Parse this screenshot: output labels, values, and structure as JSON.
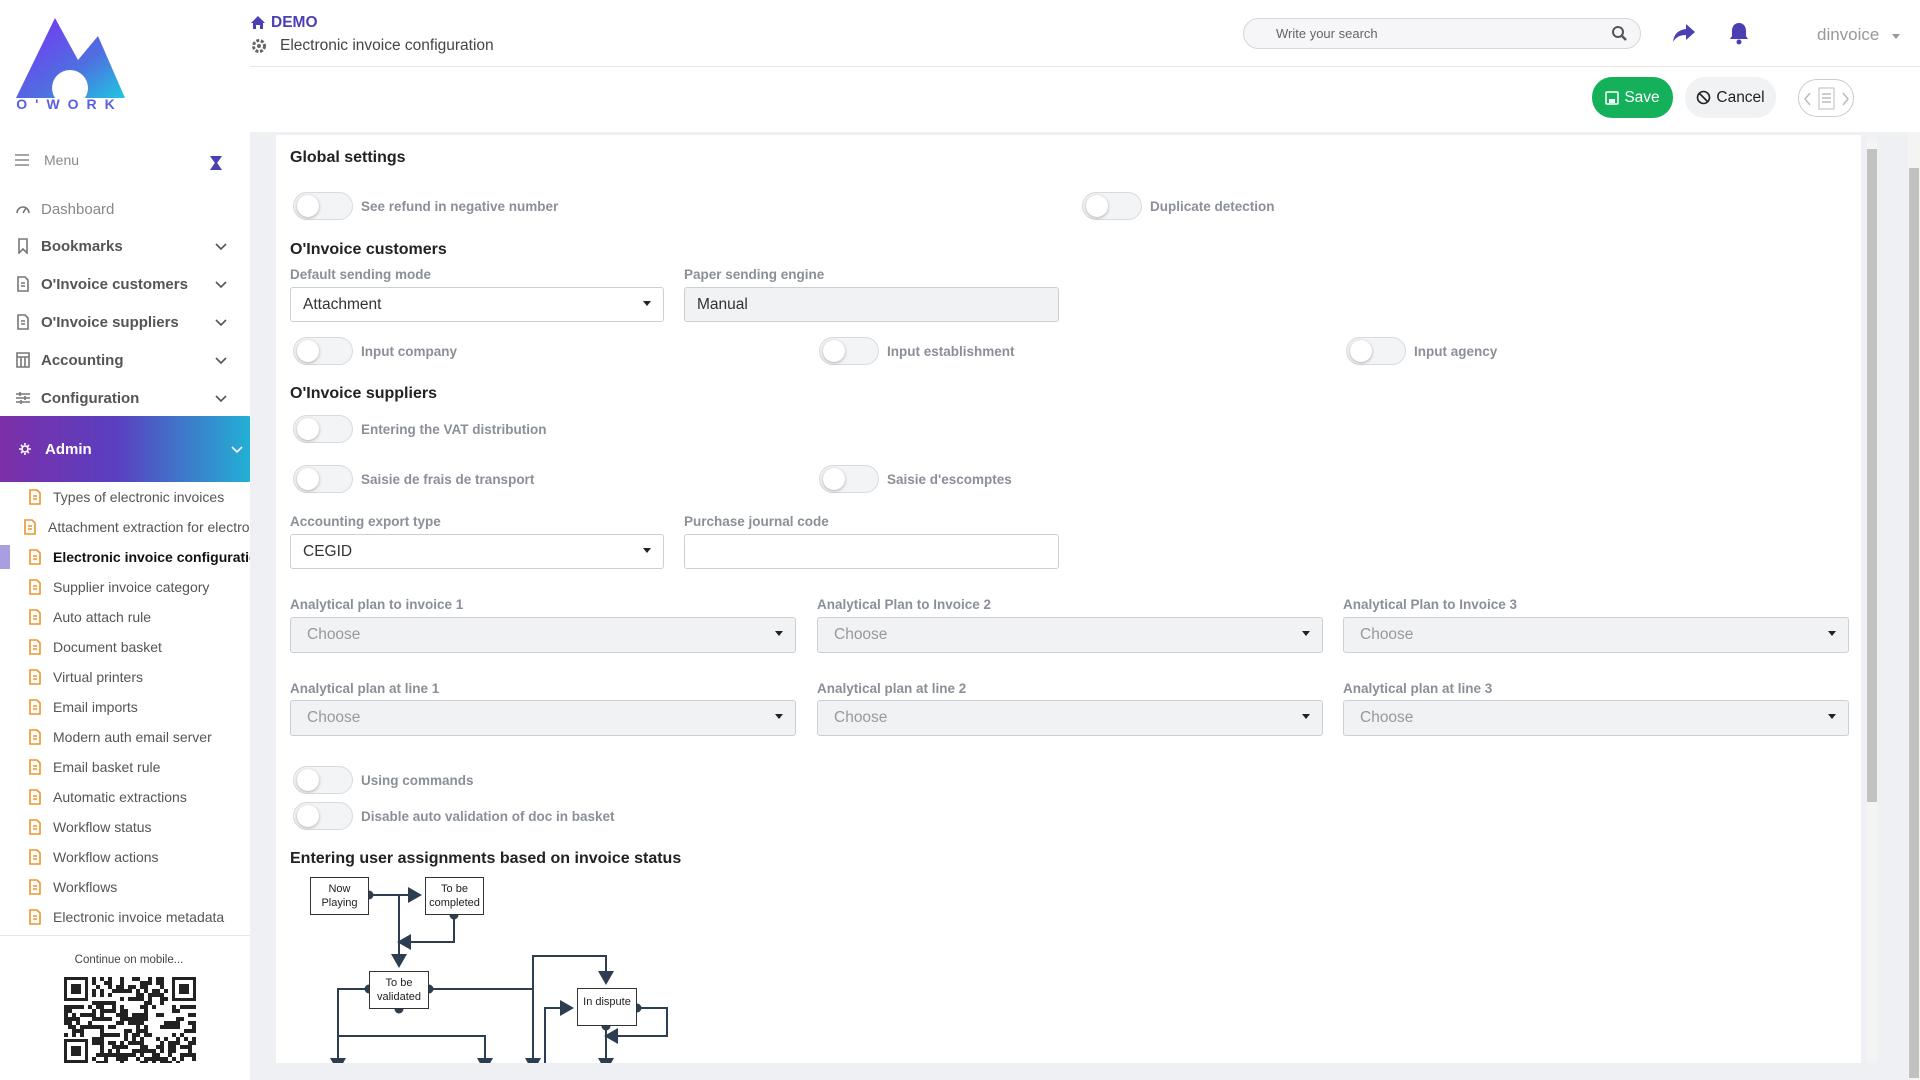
{
  "header": {
    "logo": "O'WORK",
    "breadcrumb": "DEMO",
    "page_title": "Electronic invoice configuration",
    "search_placeholder": "Write your search",
    "user": "dinvoice"
  },
  "toolbar": {
    "save": "Save",
    "cancel": "Cancel"
  },
  "sidebar": {
    "menu": "Menu",
    "items": [
      "Dashboard",
      "Bookmarks",
      "O'Invoice customers",
      "O'Invoice suppliers",
      "Accounting",
      "Configuration"
    ],
    "admin": "Admin",
    "admin_items": [
      "Types of electronic invoices",
      "Attachment extraction for electronic invoices",
      "Electronic invoice configuration",
      "Supplier invoice category",
      "Auto attach rule",
      "Document basket",
      "Virtual printers",
      "Email imports",
      "Modern auth email server",
      "Email basket rule",
      "Automatic extractions",
      "Workflow status",
      "Workflow actions",
      "Workflows",
      "Electronic invoice metadata"
    ],
    "mobile_caption": "Continue on mobile..."
  },
  "form": {
    "global_title": "Global settings",
    "toggles_global": [
      "See refund in negative number",
      "Duplicate detection"
    ],
    "customers_title": "O'Invoice customers",
    "fields_customers": [
      {
        "label": "Default sending mode",
        "value": "Attachment"
      },
      {
        "label": "Paper sending engine",
        "value": "Manual"
      }
    ],
    "toggles_customers": [
      "Input company",
      "Input establishment",
      "Input agency"
    ],
    "suppliers_title": "O'Invoice suppliers",
    "toggles_suppliers": [
      "Entering the VAT distribution",
      "Saisie de frais de transport",
      "Saisie d'escomptes"
    ],
    "fields_suppliers": [
      {
        "label": "Accounting export type",
        "value": "CEGID"
      },
      {
        "label": "Purchase journal code"
      }
    ],
    "analytical": [
      {
        "label": "Analytical plan to invoice 1",
        "placeholder": "Choose"
      },
      {
        "label": "Analytical Plan to Invoice 2",
        "placeholder": "Choose"
      },
      {
        "label": "Analytical Plan to Invoice 3",
        "placeholder": "Choose"
      },
      {
        "label": "Analytical plan at line 1",
        "placeholder": "Choose"
      },
      {
        "label": "Analytical plan at line 2",
        "placeholder": "Choose"
      },
      {
        "label": "Analytical plan at line 3",
        "placeholder": "Choose"
      }
    ],
    "toggles_other": [
      "Using commands",
      "Disable auto validation of doc in basket"
    ],
    "workflow_title": "Entering user assignments based on invoice status"
  },
  "diagram": {
    "nodes": [
      "Now Playing",
      "To be completed",
      "To be validated",
      "In dispute"
    ]
  }
}
